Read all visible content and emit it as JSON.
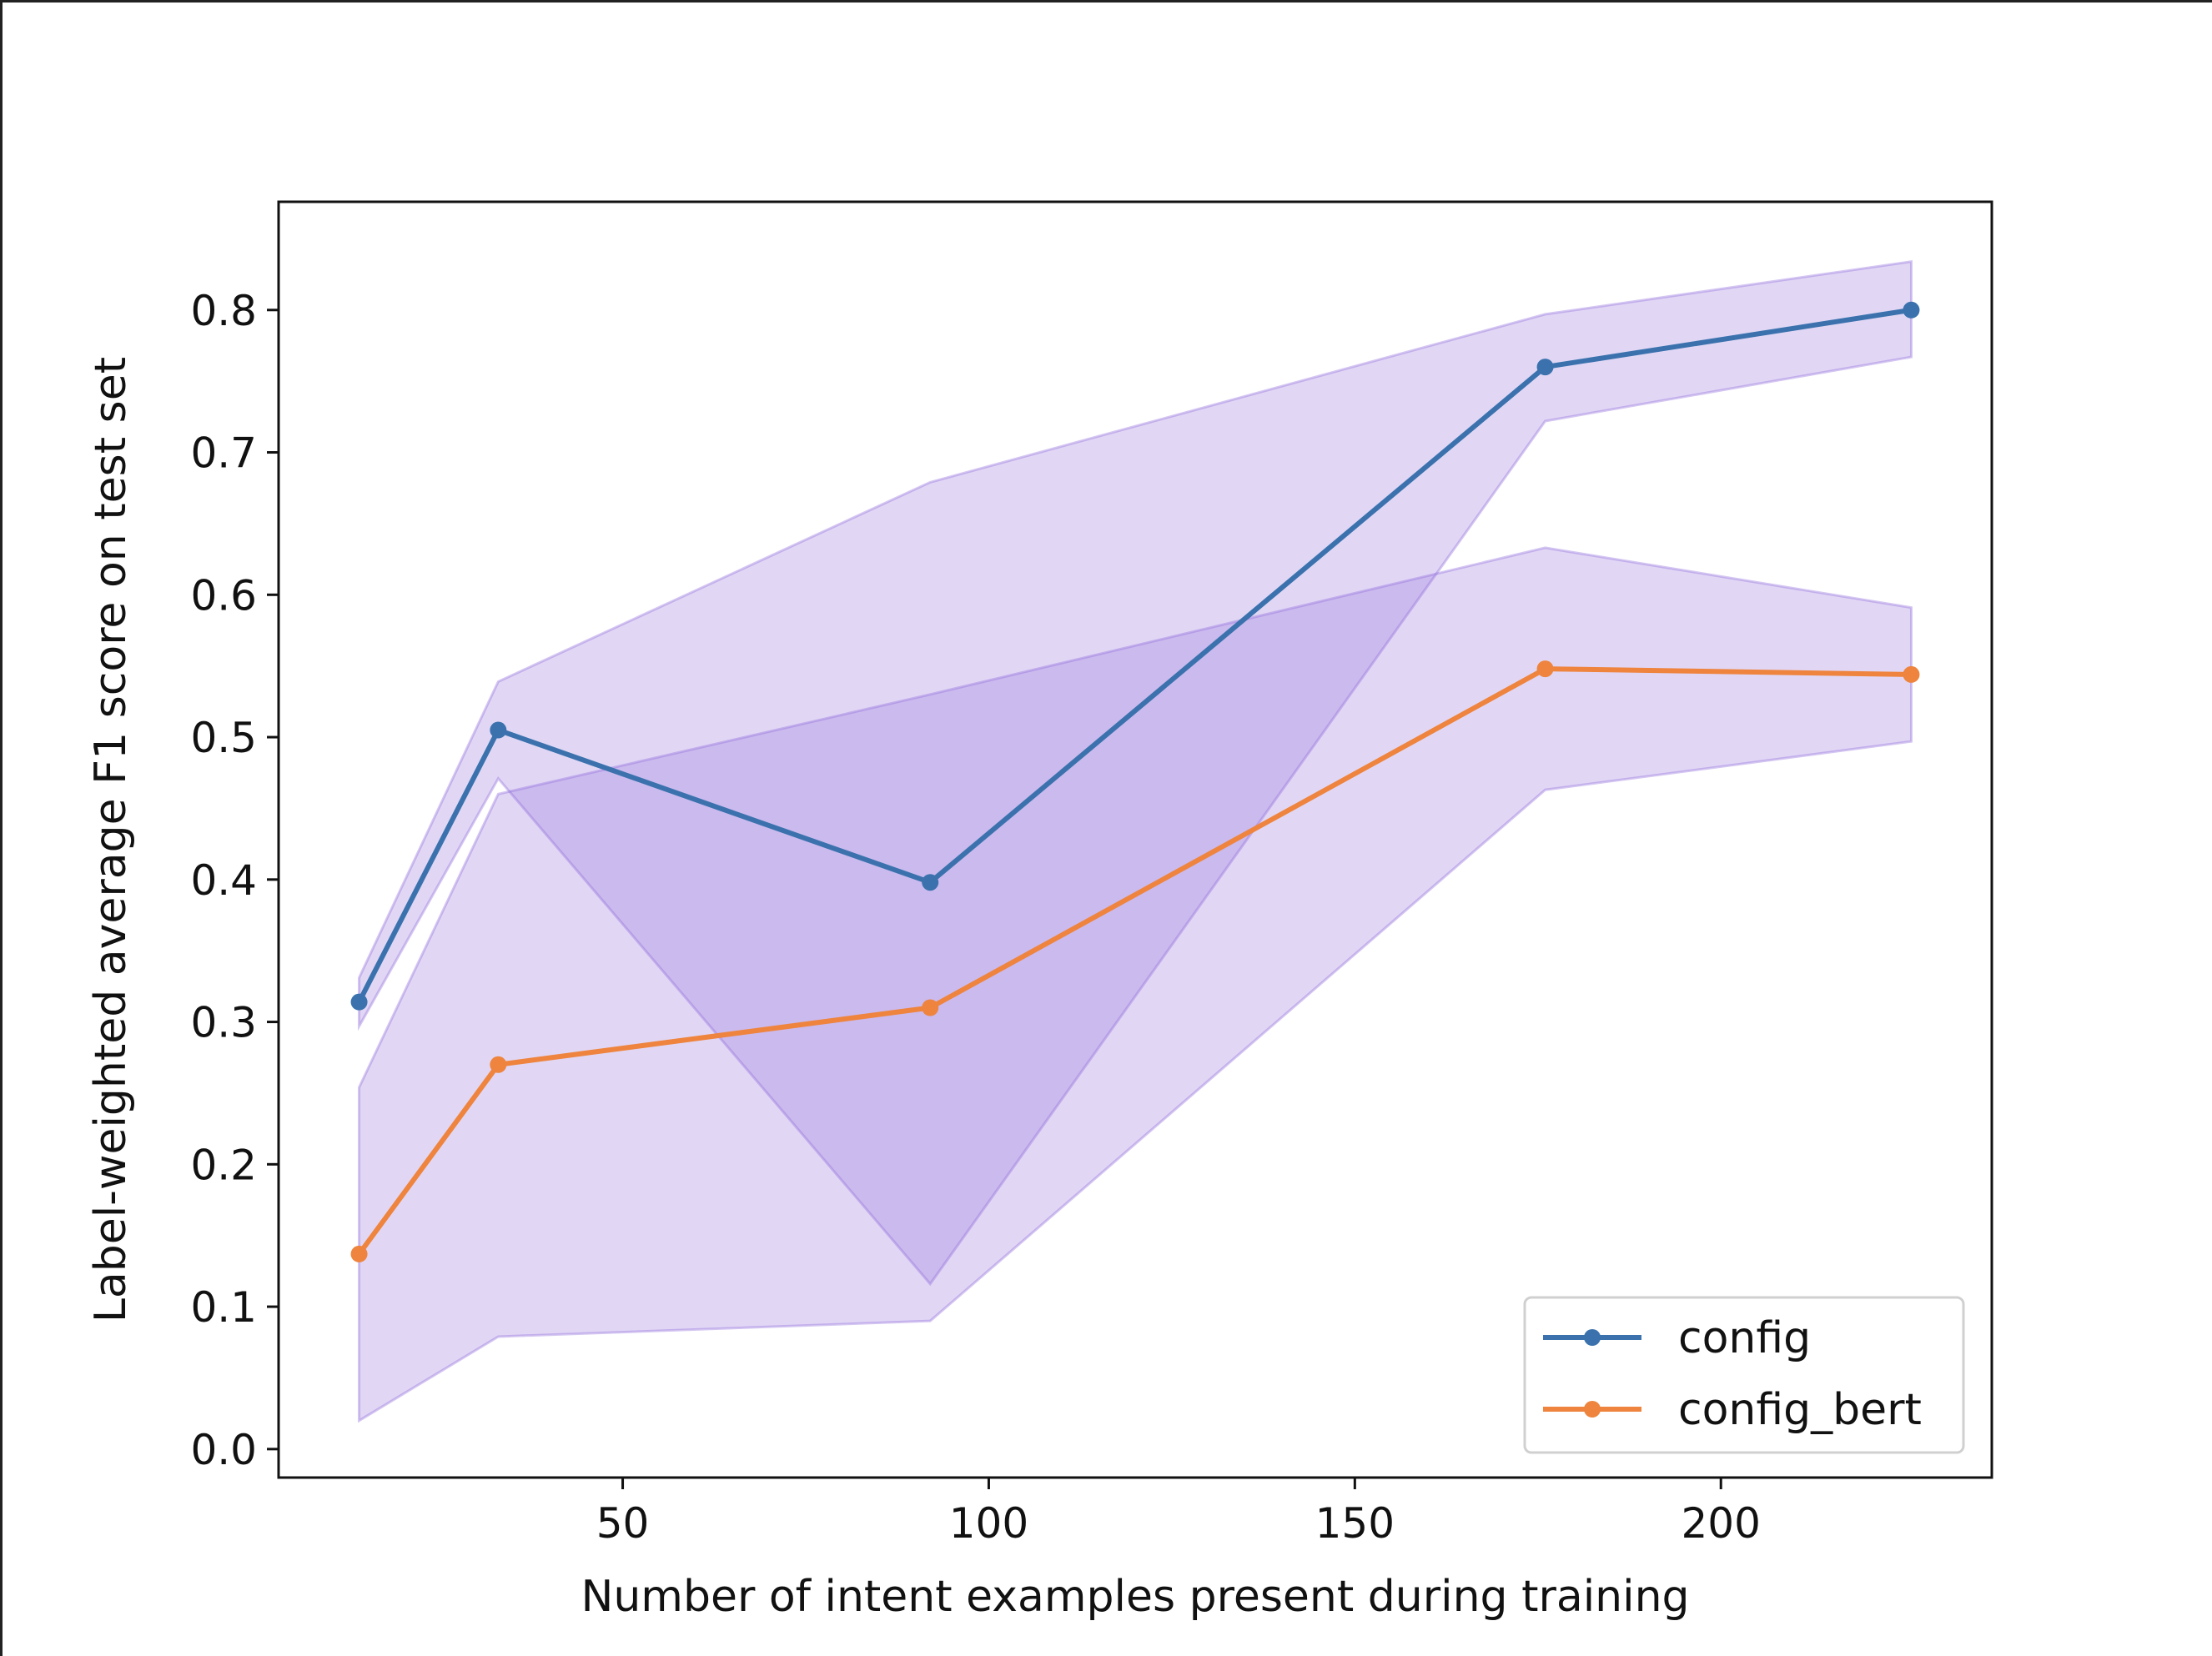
{
  "chart_data": {
    "type": "line",
    "title": "",
    "xlabel": "Number of intent examples present during training",
    "ylabel": "Label-weighted average F1 score on test set",
    "xlim": [
      3,
      237
    ],
    "ylim": [
      -0.02,
      0.876
    ],
    "xticks": [
      50,
      100,
      150,
      200
    ],
    "xtick_labels": [
      "50",
      "100",
      "150",
      "200"
    ],
    "yticks": [
      0.0,
      0.1,
      0.2,
      0.3,
      0.4,
      0.5,
      0.6,
      0.7,
      0.8
    ],
    "ytick_labels": [
      "0.0",
      "0.1",
      "0.2",
      "0.3",
      "0.4",
      "0.5",
      "0.6",
      "0.7",
      "0.8"
    ],
    "grid": false,
    "legend_position": "bottom-right",
    "band_color": "#9370db",
    "series": [
      {
        "name": "config",
        "color": "#3b72ad",
        "x": [
          14,
          33,
          92,
          176,
          226
        ],
        "y": [
          0.314,
          0.505,
          0.398,
          0.76,
          0.8
        ],
        "lower": [
          0.297,
          0.471,
          0.116,
          0.722,
          0.767
        ],
        "upper": [
          0.331,
          0.539,
          0.679,
          0.797,
          0.834
        ]
      },
      {
        "name": "config_bert",
        "color": "#ee843d",
        "x": [
          14,
          33,
          92,
          176,
          226
        ],
        "y": [
          0.137,
          0.27,
          0.31,
          0.548,
          0.544
        ],
        "lower": [
          0.02,
          0.079,
          0.09,
          0.463,
          0.497
        ],
        "upper": [
          0.254,
          0.46,
          0.53,
          0.633,
          0.591
        ]
      }
    ]
  }
}
